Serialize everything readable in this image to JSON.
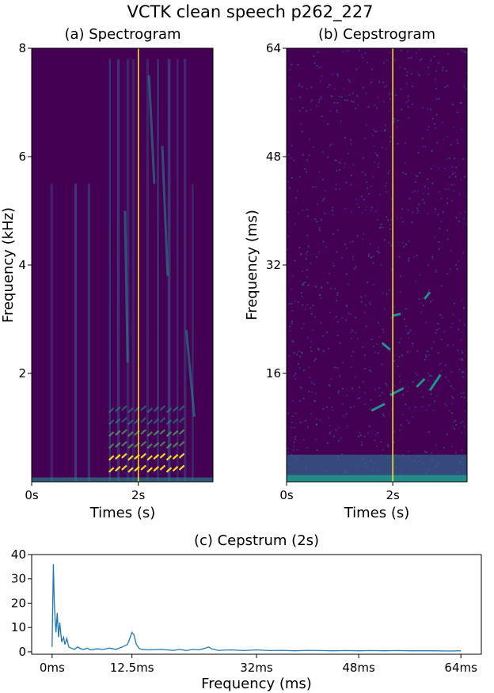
{
  "figure_title": "VCTK clean speech p262_227",
  "colors": {
    "heatmap_bg": "#440154",
    "viridis_mid": "#21918c",
    "viridis_high": "#fde725",
    "time_marker": "#fde725",
    "cepstrum_line": "#1f77b4"
  },
  "chart_data": [
    {
      "id": "spectrogram",
      "type": "heatmap",
      "title": "(a) Spectrogram",
      "xlabel": "Times (s)",
      "ylabel": "Frequency (kHz)",
      "xlim": [
        0,
        3.4
      ],
      "ylim": [
        0,
        8
      ],
      "xticks": [
        0,
        2
      ],
      "xtick_labels": [
        "0s",
        "2s"
      ],
      "yticks": [
        2,
        4,
        6,
        8
      ],
      "ytick_labels": [
        "2",
        "4",
        "6",
        "8"
      ],
      "marker_time": 2.0,
      "colormap": "viridis"
    },
    {
      "id": "cepstrogram",
      "type": "heatmap",
      "title": "(b) Cepstrogram",
      "xlabel": "Times (s)",
      "ylabel": "Frequency (ms)",
      "xlim": [
        0,
        3.4
      ],
      "ylim": [
        0,
        64
      ],
      "xticks": [
        0,
        2
      ],
      "xtick_labels": [
        "0s",
        "2s"
      ],
      "yticks": [
        16,
        32,
        48,
        64
      ],
      "ytick_labels": [
        "16",
        "32",
        "48",
        "64"
      ],
      "marker_time": 2.0,
      "colormap": "viridis"
    },
    {
      "id": "cepstrum",
      "type": "line",
      "title": "(c) Cepstrum (2s)",
      "xlabel": "Frequency (ms)",
      "ylabel": "",
      "xlim": [
        -3.2,
        67.2
      ],
      "ylim": [
        -1,
        40
      ],
      "xticks": [
        0,
        12.5,
        32,
        48,
        64
      ],
      "xtick_labels": [
        "0ms",
        "12.5ms",
        "32ms",
        "48ms",
        "64ms"
      ],
      "yticks": [
        0,
        10,
        20,
        30,
        40
      ],
      "ytick_labels": [
        "0",
        "10",
        "20",
        "30",
        "40"
      ],
      "series": [
        {
          "x": [
            0,
            0.2,
            0.35,
            0.5,
            0.6,
            0.8,
            1.0,
            1.2,
            1.5,
            1.8,
            2.0,
            2.3,
            2.6,
            3.0,
            3.5,
            4.0,
            4.5,
            5.0,
            5.5,
            6.0,
            7.0,
            8.0,
            9.0,
            10.0,
            11.0,
            11.8,
            12.1,
            12.5,
            12.8,
            13.2,
            13.6,
            14.0,
            15.0,
            17.0,
            19.0,
            20.0,
            21.0,
            22.0,
            23.0,
            24.0,
            24.5,
            25.0,
            26.0,
            28.0,
            30.0,
            32.0,
            34.0,
            36.0,
            38.0,
            40.0,
            42.0,
            44.0,
            46.0,
            48.0,
            50.0,
            52.0,
            54.0,
            56.0,
            58.0,
            60.0,
            62.0,
            64.0
          ],
          "y": [
            2,
            36,
            20,
            12,
            8,
            16,
            6,
            12,
            4,
            6,
            3,
            5.5,
            2,
            1.5,
            1,
            2,
            1.2,
            1,
            1.5,
            0.8,
            1.2,
            1,
            1.5,
            1,
            2,
            3,
            5,
            8,
            7,
            3,
            1.5,
            1,
            0.8,
            1,
            0.6,
            1,
            0.5,
            1,
            0.8,
            1.5,
            2,
            1.2,
            0.6,
            0.8,
            0.5,
            0.8,
            0.5,
            0.6,
            0.4,
            0.6,
            0.5,
            0.4,
            0.5,
            0.4,
            0.5,
            0.4,
            0.5,
            0.4,
            0.4,
            0.4,
            0.3,
            0.4
          ]
        }
      ]
    }
  ]
}
